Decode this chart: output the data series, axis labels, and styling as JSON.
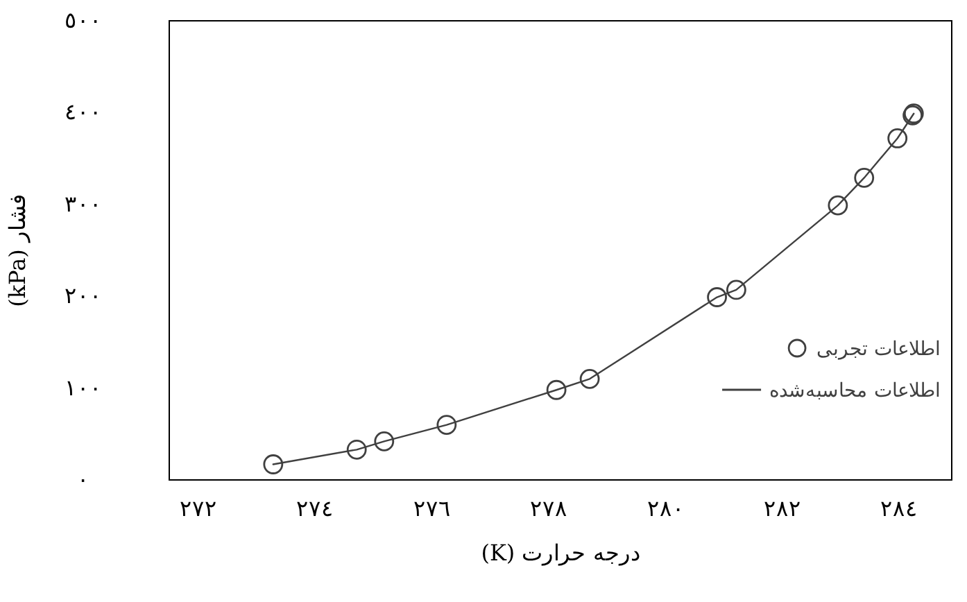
{
  "chart_data": {
    "type": "scatter",
    "xlabel": "درجه حرارت (K)",
    "ylabel": "فشار (kPa)",
    "xlim": [
      271.5,
      284.9
    ],
    "ylim": [
      0,
      500
    ],
    "xticks": [
      {
        "value": 272,
        "label": "٢٧٢"
      },
      {
        "value": 274,
        "label": "٢٧٤"
      },
      {
        "value": 276,
        "label": "٢٧٦"
      },
      {
        "value": 278,
        "label": "٢٧٨"
      },
      {
        "value": 280,
        "label": "٢٨٠"
      },
      {
        "value": 282,
        "label": "٢٨٢"
      },
      {
        "value": 284,
        "label": "٢٨٤"
      }
    ],
    "yticks": [
      {
        "value": 0,
        "label": "٠"
      },
      {
        "value": 100,
        "label": "١٠٠"
      },
      {
        "value": 200,
        "label": "٢٠٠"
      },
      {
        "value": 300,
        "label": "٣٠٠"
      },
      {
        "value": 400,
        "label": "٤٠٠"
      },
      {
        "value": 500,
        "label": "٥٠٠"
      }
    ],
    "grid": false,
    "legend": "bottom right",
    "series": [
      {
        "name": "اطلاعات تجربی",
        "type": "scatter",
        "marker": "circle",
        "color": "#404040",
        "x": [
          273.28,
          274.71,
          275.18,
          276.25,
          278.13,
          278.7,
          280.88,
          281.21,
          282.95,
          283.4,
          283.97,
          284.23,
          284.25
        ],
        "values": [
          17,
          33,
          42,
          60,
          98,
          110,
          199,
          207,
          299,
          329,
          372,
          397,
          399
        ]
      },
      {
        "name": "اطلاعات محاسبه‌شده",
        "type": "line",
        "marker": "none",
        "line_style": "solid",
        "color": "#404040",
        "x": [
          273.28,
          274.71,
          275.18,
          276.25,
          278.13,
          278.7,
          280.88,
          281.21,
          282.95,
          283.4,
          283.97,
          284.25
        ],
        "values": [
          17,
          33,
          42,
          60,
          98,
          110,
          199,
          207,
          299,
          329,
          372,
          399
        ]
      }
    ]
  }
}
